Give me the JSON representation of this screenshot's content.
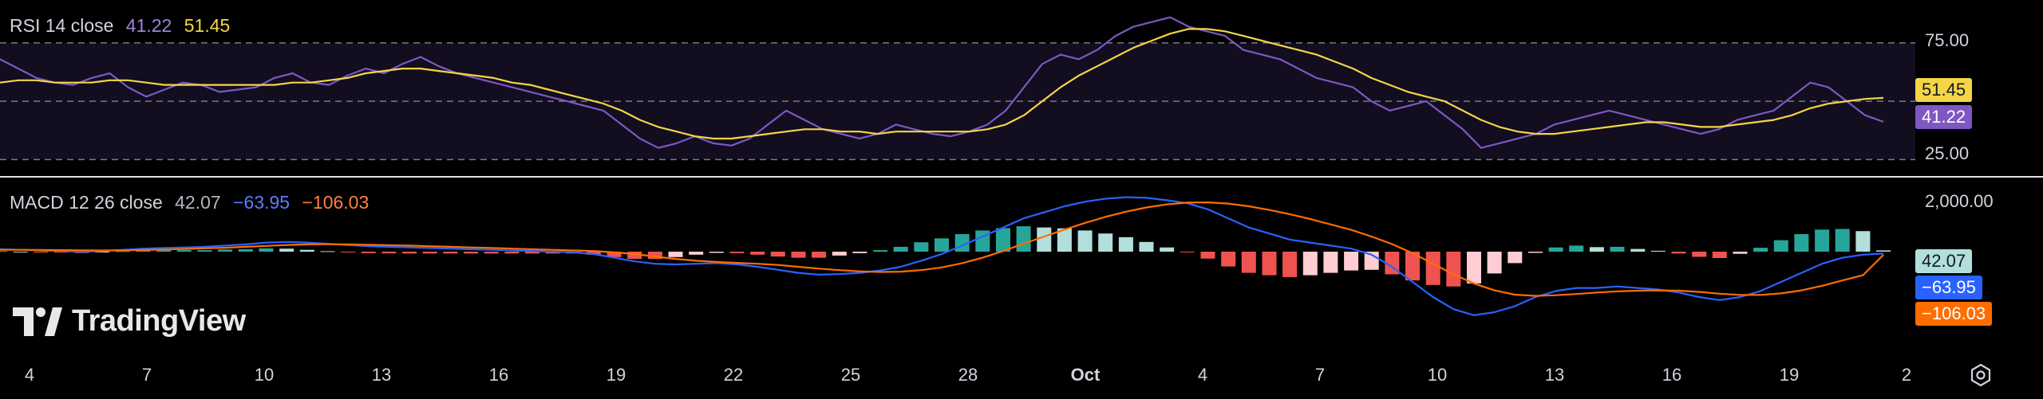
{
  "rsi": {
    "name": "RSI 14 close",
    "value": "41.22",
    "ma_value": "51.45",
    "color_rsi": "#7e57c2",
    "color_ma": "#f5d547",
    "upper_band": 75,
    "mid_band": 50,
    "lower_band": 25,
    "axis_labels": [
      "75.00",
      "25.00"
    ],
    "badge_ma": "51.45",
    "badge_rsi": "41.22"
  },
  "macd": {
    "name": "MACD 12 26 close",
    "histogram_value": "42.07",
    "macd_value": "−63.95",
    "signal_value": "−106.03",
    "color_macd": "#2962ff",
    "color_signal": "#ff6d00",
    "color_hist_pos": "#26a69a",
    "color_hist_neg": "#ef5350",
    "axis_labels": [
      "2,000.00"
    ],
    "badge_hist": "42.07",
    "badge_macd": "−63.95",
    "badge_signal": "−106.03"
  },
  "x_axis": {
    "labels": [
      "4",
      "7",
      "10",
      "13",
      "16",
      "19",
      "22",
      "25",
      "28",
      "Oct",
      "4",
      "7",
      "10",
      "13",
      "16",
      "19",
      "2"
    ]
  },
  "branding": {
    "logo_text": "TradingView"
  },
  "icons": {
    "settings": "gear-icon"
  },
  "chart_data": [
    {
      "type": "line",
      "title": "RSI 14 close",
      "ylim": [
        20,
        90
      ],
      "bands": [
        25,
        50,
        75
      ],
      "series": [
        {
          "name": "RSI",
          "values": [
            68,
            64,
            60,
            58,
            57,
            60,
            62,
            56,
            52,
            55,
            58,
            57,
            54,
            55,
            56,
            60,
            62,
            58,
            57,
            61,
            64,
            62,
            66,
            69,
            65,
            62,
            60,
            58,
            56,
            54,
            52,
            50,
            48,
            46,
            40,
            34,
            30,
            32,
            35,
            32,
            31,
            34,
            40,
            46,
            42,
            38,
            36,
            34,
            36,
            40,
            38,
            36,
            35,
            37,
            40,
            46,
            56,
            66,
            70,
            68,
            72,
            78,
            82,
            84,
            86,
            82,
            80,
            78,
            72,
            70,
            68,
            64,
            60,
            58,
            56,
            50,
            46,
            48,
            50,
            44,
            38,
            30,
            32,
            34,
            36,
            40,
            42,
            44,
            46,
            44,
            42,
            40,
            38,
            36,
            38,
            42,
            44,
            46,
            52,
            58,
            56,
            50,
            44,
            41.22
          ]
        },
        {
          "name": "RSI-based MA",
          "values": [
            58,
            59,
            59,
            58,
            58,
            58,
            59,
            59,
            58,
            57,
            57,
            57,
            57,
            57,
            57,
            57,
            58,
            58,
            59,
            60,
            62,
            63,
            64,
            64,
            63,
            62,
            61,
            60,
            58,
            57,
            55,
            53,
            51,
            49,
            46,
            42,
            39,
            37,
            35,
            34,
            34,
            35,
            36,
            37,
            38,
            38,
            37,
            37,
            36,
            37,
            37,
            37,
            37,
            37,
            38,
            40,
            44,
            50,
            56,
            61,
            65,
            69,
            73,
            76,
            79,
            81,
            81,
            80,
            78,
            76,
            74,
            72,
            70,
            67,
            64,
            60,
            57,
            54,
            52,
            50,
            46,
            42,
            39,
            37,
            36,
            36,
            37,
            38,
            39,
            40,
            41,
            41,
            40,
            39,
            39,
            40,
            41,
            42,
            44,
            47,
            49,
            50,
            51,
            51.45
          ]
        }
      ]
    },
    {
      "type": "line",
      "title": "MACD 12 26 close",
      "ylim": [
        -3000,
        2000
      ],
      "series": [
        {
          "name": "MACD",
          "values": [
            80,
            60,
            40,
            20,
            0,
            20,
            60,
            100,
            120,
            140,
            160,
            200,
            240,
            300,
            320,
            300,
            260,
            220,
            180,
            160,
            140,
            120,
            100,
            80,
            60,
            40,
            20,
            0,
            -20,
            -80,
            -200,
            -320,
            -400,
            -420,
            -400,
            -380,
            -420,
            -500,
            -600,
            -700,
            -760,
            -740,
            -700,
            -620,
            -500,
            -300,
            -80,
            200,
            500,
            800,
            1100,
            1300,
            1500,
            1650,
            1750,
            1800,
            1780,
            1700,
            1600,
            1400,
            1100,
            800,
            600,
            400,
            300,
            200,
            100,
            -100,
            -500,
            -1000,
            -1500,
            -1900,
            -2100,
            -2000,
            -1800,
            -1500,
            -1300,
            -1200,
            -1200,
            -1150,
            -1200,
            -1250,
            -1350,
            -1500,
            -1600,
            -1500,
            -1300,
            -1000,
            -700,
            -400,
            -200,
            -100,
            -63.95
          ]
        },
        {
          "name": "Signal",
          "values": [
            60,
            60,
            55,
            50,
            45,
            40,
            45,
            55,
            70,
            90,
            110,
            130,
            160,
            190,
            220,
            240,
            245,
            240,
            230,
            215,
            200,
            180,
            160,
            140,
            120,
            100,
            80,
            60,
            40,
            20,
            -20,
            -80,
            -160,
            -240,
            -300,
            -340,
            -370,
            -400,
            -440,
            -500,
            -560,
            -610,
            -650,
            -670,
            -660,
            -610,
            -520,
            -380,
            -200,
            20,
            260,
            500,
            730,
            950,
            1150,
            1320,
            1460,
            1560,
            1620,
            1630,
            1590,
            1500,
            1380,
            1240,
            1080,
            900,
            720,
            500,
            250,
            -50,
            -400,
            -750,
            -1050,
            -1280,
            -1420,
            -1460,
            -1440,
            -1400,
            -1350,
            -1310,
            -1290,
            -1280,
            -1290,
            -1330,
            -1390,
            -1430,
            -1430,
            -1380,
            -1280,
            -1130,
            -950,
            -780,
            -106.03
          ]
        }
      ]
    }
  ]
}
